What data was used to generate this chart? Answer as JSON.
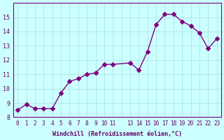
{
  "x": [
    0,
    1,
    2,
    3,
    4,
    5,
    6,
    7,
    8,
    9,
    10,
    11,
    13,
    14,
    15,
    16,
    17,
    18,
    19,
    20,
    21,
    22,
    23
  ],
  "y": [
    8.5,
    8.9,
    8.6,
    8.6,
    8.6,
    9.7,
    10.5,
    10.7,
    11.0,
    11.1,
    11.7,
    11.7,
    11.8,
    11.3,
    12.6,
    14.5,
    15.2,
    15.2,
    14.7,
    14.4,
    13.9,
    12.8,
    13.5
  ],
  "xlabel": "Windchill (Refroidissement éolien,°C)",
  "xlim": [
    -0.5,
    23.5
  ],
  "ylim": [
    8,
    16
  ],
  "yticks": [
    8,
    9,
    10,
    11,
    12,
    13,
    14,
    15
  ],
  "xticks": [
    0,
    1,
    2,
    3,
    4,
    5,
    6,
    7,
    8,
    9,
    10,
    11,
    12,
    13,
    14,
    15,
    16,
    17,
    18,
    19,
    20,
    21,
    22,
    23
  ],
  "xtick_labels": [
    "0",
    "1",
    "2",
    "3",
    "4",
    "5",
    "6",
    "7",
    "8",
    "9",
    "10",
    "11",
    "",
    "13",
    "14",
    "15",
    "16",
    "17",
    "18",
    "19",
    "20",
    "21",
    "22",
    "23"
  ],
  "line_color": "#800080",
  "marker_color": "#800080",
  "bg_color": "#ccffff",
  "grid_color": "#aadddd",
  "text_color": "#660066",
  "title_color": "#660066"
}
